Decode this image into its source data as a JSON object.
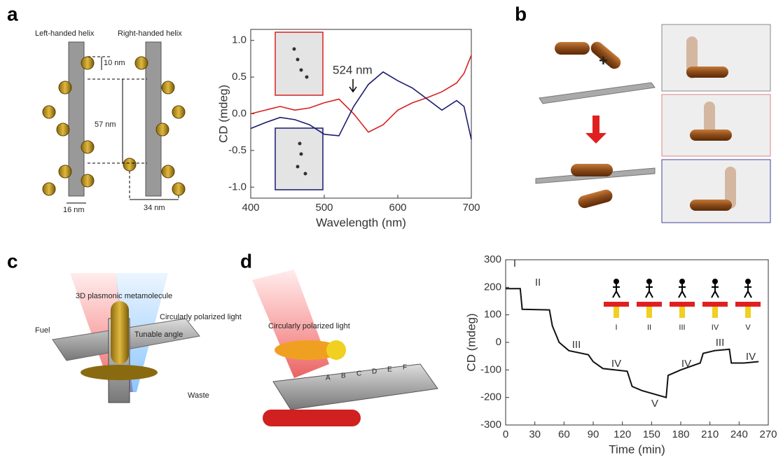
{
  "panel_labels": [
    "a",
    "b",
    "c",
    "d"
  ],
  "panel_a": {
    "left_label": "Left-handed helix",
    "right_label": "Right-handed helix",
    "dimensions": [
      "10 nm",
      "57 nm",
      "16 nm",
      "34 nm"
    ]
  },
  "panel_c": {
    "labels": [
      "3D plasmonic metamolecule",
      "Circularly polarized light",
      "Tunable angle",
      "Fuel",
      "Waste"
    ]
  },
  "panel_d": {
    "labels": [
      "Circularly polarized light"
    ],
    "sites": [
      "A",
      "B",
      "C",
      "D",
      "E",
      "F"
    ]
  },
  "chart_data": [
    {
      "type": "line",
      "xlabel": "Wavelength (nm)",
      "ylabel": "CD (mdeg)",
      "annotation": "524 nm",
      "x": [
        400,
        420,
        440,
        460,
        480,
        500,
        520,
        540,
        560,
        580,
        600,
        620,
        640,
        660,
        680,
        690,
        700
      ],
      "series": [
        {
          "color": "#d62020",
          "values": [
            0.0,
            0.05,
            0.1,
            0.05,
            0.08,
            0.15,
            0.2,
            0.0,
            -0.25,
            -0.15,
            0.05,
            0.15,
            0.22,
            0.3,
            0.42,
            0.55,
            0.8
          ]
        },
        {
          "color": "#1a1a6e",
          "values": [
            -0.2,
            -0.12,
            -0.05,
            -0.08,
            -0.15,
            -0.28,
            -0.3,
            0.1,
            0.4,
            0.57,
            0.45,
            0.35,
            0.2,
            0.05,
            0.18,
            0.1,
            -0.35
          ]
        }
      ],
      "xlim": [
        400,
        700
      ],
      "xticks": [
        400,
        500,
        600,
        700
      ],
      "ylim": [
        -1.15,
        1.15
      ],
      "yticks": [
        {
          "value": -1.0,
          "label": "-1.0"
        },
        {
          "value": -0.5,
          "label": "-0.5"
        },
        {
          "value": 0,
          "label": "0.0"
        },
        {
          "value": 0.5,
          "label": "0.5"
        },
        {
          "value": 1.0,
          "label": "1.0"
        }
      ]
    },
    {
      "type": "line",
      "xlabel": "Time (min)",
      "ylabel": "CD (mdeg)",
      "step_labels": [
        "I",
        "II",
        "III",
        "IV",
        "V",
        "IV",
        "III",
        "IV"
      ],
      "walker_labels": [
        "I",
        "II",
        "III",
        "IV",
        "V"
      ],
      "x": [
        0,
        15,
        17,
        45,
        48,
        55,
        65,
        85,
        90,
        100,
        125,
        130,
        140,
        165,
        167,
        180,
        200,
        203,
        215,
        230,
        232,
        245,
        260
      ],
      "series": [
        {
          "color": "#111111",
          "values": [
            195,
            195,
            120,
            118,
            60,
            0,
            -30,
            -45,
            -70,
            -95,
            -105,
            -160,
            -175,
            -200,
            -120,
            -100,
            -75,
            -40,
            -30,
            -25,
            -75,
            -75,
            -70
          ]
        }
      ],
      "xlim": [
        0,
        270
      ],
      "xticks": [
        0,
        30,
        60,
        90,
        120,
        150,
        180,
        210,
        240,
        270
      ],
      "ylim": [
        -300,
        300
      ],
      "yticks": [
        -300,
        -200,
        -100,
        0,
        100,
        200,
        300
      ]
    }
  ]
}
